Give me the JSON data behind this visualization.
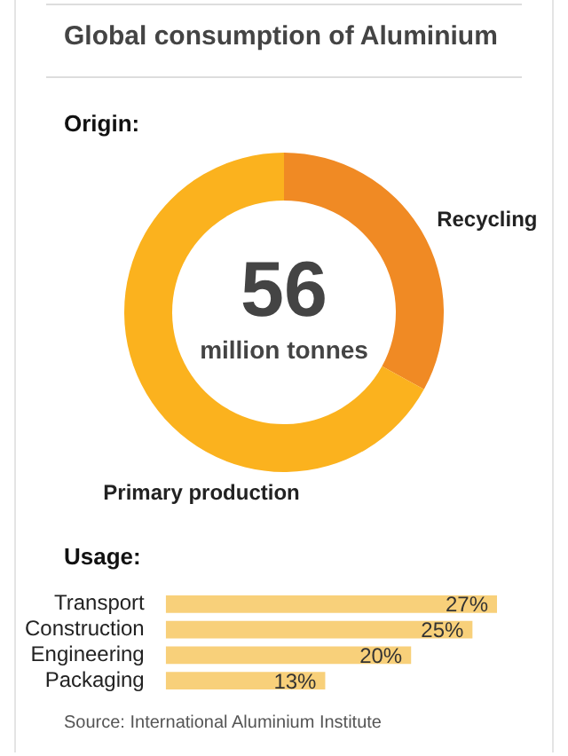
{
  "chart_data": [
    {
      "type": "donut",
      "title": "Global consumption of Aluminium",
      "subtitle": "Origin:",
      "categories": [
        "Recycling",
        "Primary production"
      ],
      "values": [
        33,
        67
      ],
      "colors": [
        "#f08a24",
        "#fbb21e"
      ],
      "annotations": [
        "56",
        "million tonnes"
      ],
      "legend": false
    },
    {
      "type": "bar",
      "orientation": "horizontal",
      "title": "Usage:",
      "categories": [
        "Transport",
        "Construction",
        "Engineering",
        "Packaging"
      ],
      "values": [
        27,
        25,
        20,
        13
      ],
      "value_labels": [
        "27%",
        "25%",
        "20%",
        "13%"
      ],
      "color": "#f8d07a",
      "annotations": [
        "Source: International Aluminium Institute"
      ],
      "legend": false
    }
  ]
}
